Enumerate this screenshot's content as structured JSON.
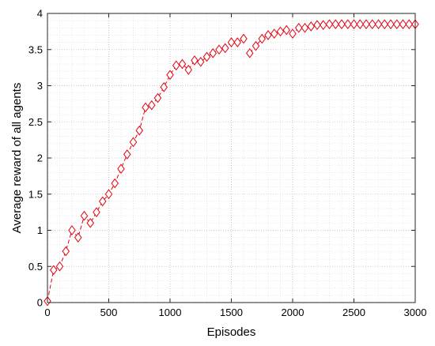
{
  "chart_data": {
    "type": "line",
    "xlabel": "Episodes",
    "ylabel": "Average reward of all agents",
    "xlim": [
      0,
      3000
    ],
    "ylim": [
      0,
      4
    ],
    "x_ticks": [
      0,
      500,
      1000,
      1500,
      2000,
      2500,
      3000
    ],
    "y_ticks": [
      0,
      0.5,
      1,
      1.5,
      2,
      2.5,
      3,
      3.5,
      4
    ],
    "grid": true,
    "minor_grid": true,
    "legend": "none",
    "series": [
      {
        "color": "#e6000f",
        "line_style": "dashed",
        "marker": "diamond",
        "x": [
          0,
          50,
          100,
          150,
          200,
          250,
          300,
          350,
          400,
          450,
          500,
          550,
          600,
          650,
          700,
          750,
          800,
          850,
          900,
          950,
          1000,
          1050,
          1100,
          1150,
          1200,
          1250,
          1300,
          1350,
          1400,
          1450,
          1500,
          1550,
          1600,
          1650,
          1700,
          1750,
          1800,
          1850,
          1900,
          1950,
          2000,
          2050,
          2100,
          2150,
          2200,
          2250,
          2300,
          2350,
          2400,
          2450,
          2500,
          2550,
          2600,
          2650,
          2700,
          2750,
          2800,
          2850,
          2900,
          2950,
          3000
        ],
        "y": [
          0.02,
          0.45,
          0.5,
          0.71,
          1.0,
          0.9,
          1.2,
          1.1,
          1.25,
          1.4,
          1.5,
          1.65,
          1.85,
          2.05,
          2.22,
          2.38,
          2.7,
          2.73,
          2.83,
          2.98,
          3.15,
          3.28,
          3.3,
          3.22,
          3.35,
          3.33,
          3.4,
          3.45,
          3.5,
          3.52,
          3.6,
          3.6,
          3.65,
          3.45,
          3.55,
          3.65,
          3.7,
          3.72,
          3.75,
          3.77,
          3.72,
          3.8,
          3.8,
          3.82,
          3.84,
          3.84,
          3.85,
          3.85,
          3.85,
          3.85,
          3.85,
          3.85,
          3.85,
          3.85,
          3.85,
          3.85,
          3.85,
          3.85,
          3.85,
          3.85,
          3.85
        ],
        "segments_break_after_index": [
          32
        ]
      }
    ]
  }
}
